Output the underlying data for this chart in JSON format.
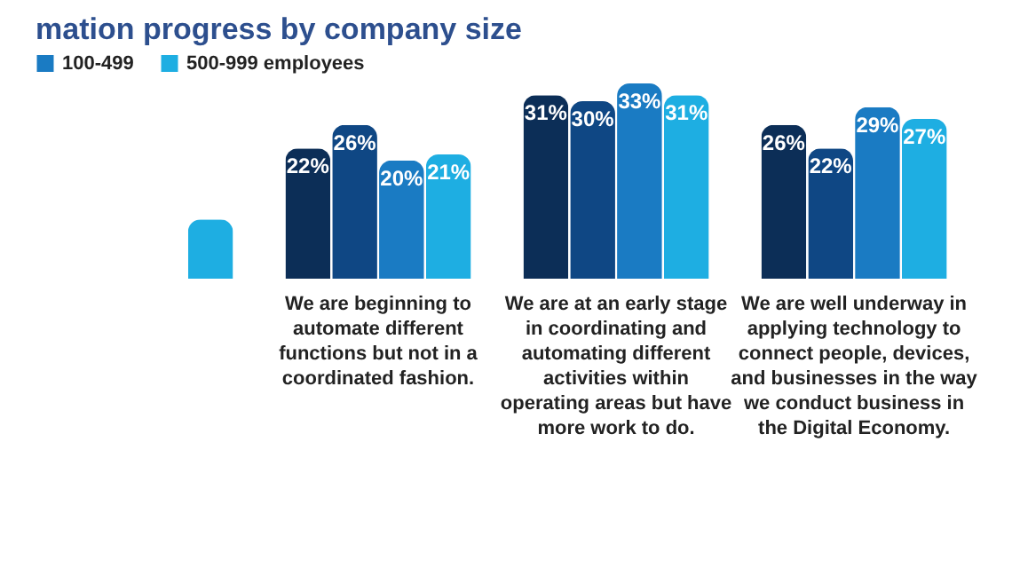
{
  "chart_data": {
    "type": "bar",
    "title": "mation progress by company size",
    "categories": [
      null,
      "We are beginning to automate different functions but not in a coordinated fashion.",
      "We are at an early stage in coordinating and automating different activities within operating areas but have more work to do.",
      "We are well underway in applying technology to connect people, devices, and businesses in the way we conduct business in the Digital Economy."
    ],
    "series": [
      {
        "color": "#0c2e57",
        "values": [
          null,
          22,
          31,
          26
        ],
        "value_labels": [
          null,
          "22%",
          "31%",
          "26%"
        ]
      },
      {
        "color": "#0f4784",
        "values": [
          null,
          26,
          30,
          22
        ],
        "value_labels": [
          null,
          "26%",
          "30%",
          "22%"
        ]
      },
      {
        "name": "100-499",
        "color": "#1a7bc3",
        "values": [
          null,
          20,
          33,
          29
        ],
        "value_labels": [
          null,
          "20%",
          "33%",
          "29%"
        ]
      },
      {
        "name": "500-999 employees",
        "color": "#1eaee2",
        "values": [
          10,
          21,
          31,
          27
        ],
        "value_labels": [
          null,
          "21%",
          "31%",
          "27%"
        ]
      }
    ],
    "legend": "top left"
  }
}
